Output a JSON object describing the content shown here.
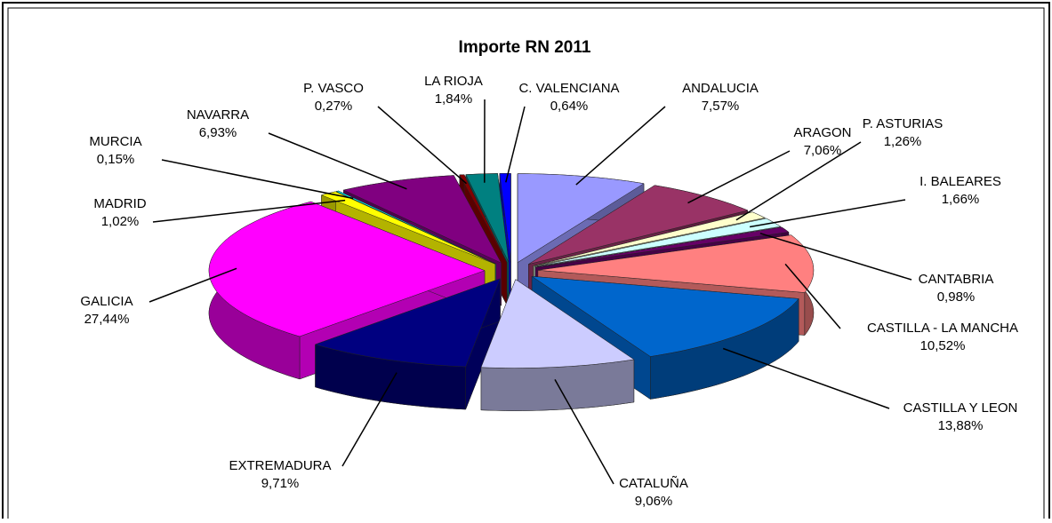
{
  "chart_data": {
    "type": "pie3d",
    "title": "Importe RN 2011",
    "categories": [
      "ANDALUCIA",
      "ARAGON",
      "P. ASTURIAS",
      "I. BALEARES",
      "CANTABRIA",
      "CASTILLA - LA MANCHA",
      "CASTILLA Y LEON",
      "CATALUÑA",
      "EXTREMADURA",
      "GALICIA",
      "MADRID",
      "MURCIA",
      "NAVARRA",
      "P. VASCO",
      "LA RIOJA",
      "C. VALENCIANA"
    ],
    "values": [
      7.57,
      7.06,
      1.26,
      1.66,
      0.98,
      10.52,
      13.88,
      9.06,
      9.71,
      27.44,
      1.02,
      0.15,
      6.93,
      0.27,
      1.84,
      0.64
    ],
    "value_labels": [
      "7,57%",
      "7,06%",
      "1,26%",
      "1,66%",
      "0,98%",
      "10,52%",
      "13,88%",
      "9,06%",
      "9,71%",
      "27,44%",
      "1,02%",
      "0,15%",
      "6,93%",
      "0,27%",
      "1,84%",
      "0,64%"
    ],
    "colors": [
      "#9999ff",
      "#993366",
      "#ffffcc",
      "#ccffff",
      "#660066",
      "#ff8080",
      "#0066cc",
      "#ccccff",
      "#000080",
      "#ff00ff",
      "#ffff00",
      "#00ffff",
      "#800080",
      "#800000",
      "#008080",
      "#0000ff"
    ]
  }
}
